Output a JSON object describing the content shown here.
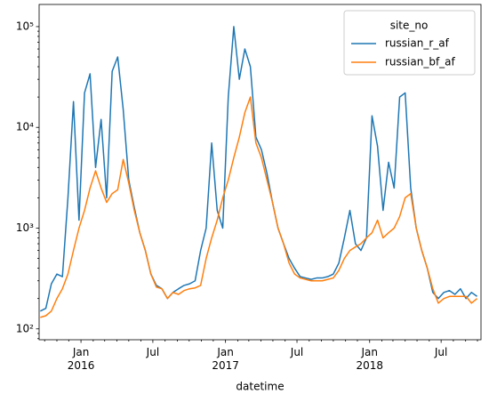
{
  "chart_data": {
    "type": "line",
    "x_label": "datetime",
    "log_y": true,
    "legend_title": "site_no",
    "legend_position": "upper right",
    "xlim": [
      "2015-09-17",
      "2018-10-10"
    ],
    "ylim": [
      78,
      166000
    ],
    "xticks": [
      {
        "value": "2016-01-01",
        "label": "Jan\n2016"
      },
      {
        "value": "2016-07-01",
        "label": "Jul"
      },
      {
        "value": "2017-01-01",
        "label": "Jan\n2017"
      },
      {
        "value": "2017-07-01",
        "label": "Jul"
      },
      {
        "value": "2018-01-01",
        "label": "Jan\n2018"
      },
      {
        "value": "2018-07-01",
        "label": "Jul"
      }
    ],
    "xminorticks": [
      "2015-10-01",
      "2015-11-01",
      "2015-12-01",
      "2016-02-01",
      "2016-03-01",
      "2016-04-01",
      "2016-05-01",
      "2016-06-01",
      "2016-08-01",
      "2016-09-01",
      "2016-10-01",
      "2016-11-01",
      "2016-12-01",
      "2017-02-01",
      "2017-03-01",
      "2017-04-01",
      "2017-05-01",
      "2017-06-01",
      "2017-08-01",
      "2017-09-01",
      "2017-10-01",
      "2017-11-01",
      "2017-12-01",
      "2018-02-01",
      "2018-03-01",
      "2018-04-01",
      "2018-05-01",
      "2018-06-01",
      "2018-08-01",
      "2018-09-01",
      "2018-10-01"
    ],
    "yticks": [
      {
        "value": 100,
        "label": "10²"
      },
      {
        "value": 1000,
        "label": "10³"
      },
      {
        "value": 10000,
        "label": "10⁴"
      },
      {
        "value": 100000,
        "label": "10⁵"
      }
    ],
    "yminorticks": [
      80,
      90,
      200,
      300,
      400,
      500,
      600,
      700,
      800,
      900,
      2000,
      3000,
      4000,
      5000,
      6000,
      7000,
      8000,
      9000,
      20000,
      30000,
      40000,
      50000,
      60000,
      70000,
      80000,
      90000
    ],
    "x": [
      "2015-09-20",
      "2015-10-04",
      "2015-10-18",
      "2015-11-01",
      "2015-11-15",
      "2015-11-29",
      "2015-12-13",
      "2015-12-27",
      "2016-01-10",
      "2016-01-24",
      "2016-02-07",
      "2016-02-21",
      "2016-03-06",
      "2016-03-20",
      "2016-04-03",
      "2016-04-17",
      "2016-05-01",
      "2016-05-15",
      "2016-05-29",
      "2016-06-12",
      "2016-06-26",
      "2016-07-10",
      "2016-07-24",
      "2016-08-07",
      "2016-08-21",
      "2016-09-04",
      "2016-09-18",
      "2016-10-02",
      "2016-10-16",
      "2016-10-30",
      "2016-11-13",
      "2016-11-27",
      "2016-12-11",
      "2016-12-25",
      "2017-01-08",
      "2017-01-22",
      "2017-02-05",
      "2017-02-19",
      "2017-03-05",
      "2017-03-19",
      "2017-04-02",
      "2017-04-16",
      "2017-04-30",
      "2017-05-14",
      "2017-05-28",
      "2017-06-11",
      "2017-06-25",
      "2017-07-09",
      "2017-07-23",
      "2017-08-06",
      "2017-08-20",
      "2017-09-03",
      "2017-09-17",
      "2017-10-01",
      "2017-10-15",
      "2017-10-29",
      "2017-11-12",
      "2017-11-26",
      "2017-12-10",
      "2017-12-24",
      "2018-01-07",
      "2018-01-21",
      "2018-02-04",
      "2018-02-18",
      "2018-03-04",
      "2018-03-18",
      "2018-04-01",
      "2018-04-15",
      "2018-04-29",
      "2018-05-13",
      "2018-05-27",
      "2018-06-10",
      "2018-06-24",
      "2018-07-08",
      "2018-07-22",
      "2018-08-05",
      "2018-08-19",
      "2018-09-02",
      "2018-09-16",
      "2018-09-30"
    ],
    "series": [
      {
        "name": "russian_r_af",
        "color": "#1f77b4",
        "values": [
          150,
          160,
          280,
          350,
          330,
          2000,
          18000,
          1200,
          22000,
          34000,
          4000,
          12000,
          2000,
          36000,
          50000,
          15000,
          3000,
          1600,
          900,
          600,
          350,
          270,
          250,
          200,
          230,
          250,
          270,
          280,
          300,
          600,
          1000,
          7000,
          1500,
          1000,
          20000,
          100000,
          30000,
          60000,
          40000,
          8000,
          6000,
          3500,
          1800,
          1000,
          700,
          500,
          400,
          330,
          320,
          310,
          320,
          320,
          330,
          350,
          450,
          800,
          1500,
          700,
          600,
          800,
          13000,
          6500,
          1500,
          4500,
          2500,
          20000,
          22000,
          2500,
          1000,
          600,
          400,
          230,
          200,
          230,
          240,
          220,
          250,
          200,
          230,
          210
        ]
      },
      {
        "name": "russian_bf_af",
        "color": "#ff7f0e",
        "values": [
          130,
          135,
          150,
          200,
          250,
          350,
          600,
          1000,
          1500,
          2500,
          3700,
          2500,
          1800,
          2200,
          2400,
          4800,
          2800,
          1500,
          900,
          600,
          350,
          260,
          250,
          200,
          230,
          220,
          240,
          250,
          255,
          270,
          500,
          800,
          1200,
          2000,
          3000,
          5000,
          8000,
          14000,
          20000,
          7000,
          5000,
          3000,
          1800,
          1000,
          700,
          450,
          350,
          320,
          310,
          300,
          300,
          300,
          310,
          320,
          380,
          500,
          600,
          650,
          700,
          800,
          900,
          1200,
          800,
          900,
          1000,
          1300,
          2000,
          2200,
          1000,
          600,
          400,
          250,
          180,
          200,
          210,
          210,
          210,
          210,
          180,
          200
        ]
      }
    ]
  }
}
